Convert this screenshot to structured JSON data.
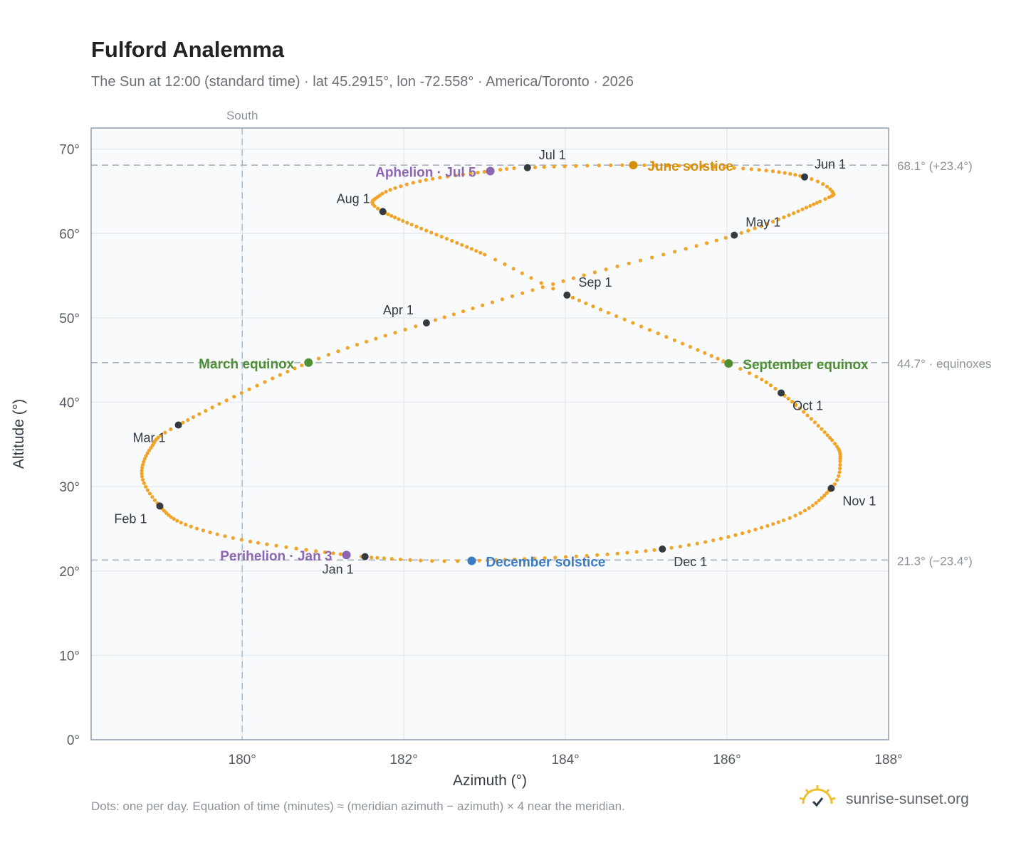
{
  "page": {
    "title": "Fulford Analemma",
    "subtitle": "The Sun at 12:00 (standard time) · lat 45.2915°, lon -72.558° · America/Toronto · 2026",
    "footnote": "Dots: one per day. Equation of time (minutes) ≈ (meridian azimuth − azimuth) × 4 near the meridian.",
    "brand": "sunrise-sunset.org",
    "brand_icon": "sun-check-icon"
  },
  "chart_data": {
    "type": "scatter",
    "xlabel": "Azimuth (°)",
    "ylabel": "Altitude (°)",
    "xlim": [
      178.13,
      188.0
    ],
    "ylim": [
      0,
      72.5
    ],
    "xticks": [
      180,
      182,
      184,
      186,
      188
    ],
    "xtick_labels": [
      "180°",
      "182°",
      "184°",
      "186°",
      "188°"
    ],
    "yticks": [
      0,
      10,
      20,
      30,
      40,
      50,
      60,
      70
    ],
    "ytick_labels": [
      "0°",
      "10°",
      "20°",
      "30°",
      "40°",
      "50°",
      "60°",
      "70°"
    ],
    "grid": true,
    "colors": {
      "path": "#f2a427",
      "month": "#343a40",
      "solstice_june": "#d4900c",
      "solstice_december": "#3a7cc4",
      "equinox": "#4e8e35",
      "apsis": "#8d66b3",
      "reference": "#aab2bd",
      "meridian": "#a9c1d6",
      "plot_bg": "#f8fafc",
      "frame": "#97a3b3"
    },
    "meridian": {
      "azimuth": 180,
      "label": "South"
    },
    "reference_lines": [
      {
        "altitude": 68.1,
        "label": "68.1° (+23.4°)"
      },
      {
        "altitude": 44.7,
        "label": "44.7° · equinoxes"
      },
      {
        "altitude": 21.3,
        "label": "21.3° (−23.4°)"
      }
    ],
    "month_markers": [
      {
        "label": "Jan 1",
        "azimuth": 181.52,
        "altitude": 21.7
      },
      {
        "label": "Feb 1",
        "azimuth": 178.98,
        "altitude": 27.7
      },
      {
        "label": "Mar 1",
        "azimuth": 179.21,
        "altitude": 37.3
      },
      {
        "label": "Apr 1",
        "azimuth": 182.28,
        "altitude": 49.4
      },
      {
        "label": "May 1",
        "azimuth": 186.09,
        "altitude": 59.8
      },
      {
        "label": "Jun 1",
        "azimuth": 186.96,
        "altitude": 66.7
      },
      {
        "label": "Jul 1",
        "azimuth": 183.53,
        "altitude": 67.8
      },
      {
        "label": "Aug 1",
        "azimuth": 181.74,
        "altitude": 62.6
      },
      {
        "label": "Sep 1",
        "azimuth": 184.02,
        "altitude": 52.7
      },
      {
        "label": "Oct 1",
        "azimuth": 186.67,
        "altitude": 41.1
      },
      {
        "label": "Nov 1",
        "azimuth": 187.29,
        "altitude": 29.8
      },
      {
        "label": "Dec 1",
        "azimuth": 185.2,
        "altitude": 22.6
      }
    ],
    "special_markers": [
      {
        "label": "March equinox",
        "kind": "equinox",
        "azimuth": 180.82,
        "altitude": 44.7
      },
      {
        "label": "June solstice",
        "kind": "solstice_june",
        "azimuth": 184.84,
        "altitude": 68.1
      },
      {
        "label": "September equinox",
        "kind": "equinox",
        "azimuth": 186.02,
        "altitude": 44.6
      },
      {
        "label": "December solstice",
        "kind": "solstice_december",
        "azimuth": 182.84,
        "altitude": 21.2
      },
      {
        "label": "Perihelion · Jan 3",
        "kind": "apsis",
        "azimuth": 181.29,
        "altitude": 21.9
      },
      {
        "label": "Aphelion · Jul 5",
        "kind": "apsis",
        "azimuth": 183.07,
        "altitude": 67.4
      }
    ],
    "path_anchors": [
      {
        "day": 0,
        "azimuth": 181.52,
        "altitude": 21.7
      },
      {
        "day": 2,
        "azimuth": 181.29,
        "altitude": 21.9
      },
      {
        "day": 13,
        "azimuth": 180.1,
        "altitude": 23.5
      },
      {
        "day": 22,
        "azimuth": 179.3,
        "altitude": 25.5
      },
      {
        "day": 31,
        "azimuth": 178.98,
        "altitude": 27.7
      },
      {
        "day": 40,
        "azimuth": 178.76,
        "altitude": 31.2
      },
      {
        "day": 50,
        "azimuth": 178.87,
        "altitude": 34.6
      },
      {
        "day": 59,
        "azimuth": 179.21,
        "altitude": 37.3
      },
      {
        "day": 78,
        "azimuth": 180.82,
        "altitude": 44.7
      },
      {
        "day": 90,
        "azimuth": 182.28,
        "altitude": 49.4
      },
      {
        "day": 105,
        "azimuth": 184.1,
        "altitude": 54.7
      },
      {
        "day": 120,
        "azimuth": 186.09,
        "altitude": 59.8
      },
      {
        "day": 137,
        "azimuth": 187.15,
        "altitude": 63.8
      },
      {
        "day": 145,
        "azimuth": 187.3,
        "altitude": 65.0
      },
      {
        "day": 151,
        "azimuth": 186.96,
        "altitude": 66.7
      },
      {
        "day": 161,
        "azimuth": 186.2,
        "altitude": 67.7
      },
      {
        "day": 171,
        "azimuth": 184.84,
        "altitude": 68.1
      },
      {
        "day": 181,
        "azimuth": 183.53,
        "altitude": 67.8
      },
      {
        "day": 185,
        "azimuth": 183.07,
        "altitude": 67.4
      },
      {
        "day": 195,
        "azimuth": 182.2,
        "altitude": 66.2
      },
      {
        "day": 203,
        "azimuth": 181.7,
        "altitude": 64.5
      },
      {
        "day": 212,
        "azimuth": 181.74,
        "altitude": 62.6
      },
      {
        "day": 235,
        "azimuth": 183.0,
        "altitude": 57.5
      },
      {
        "day": 243,
        "azimuth": 184.02,
        "altitude": 52.7
      },
      {
        "day": 265,
        "azimuth": 186.02,
        "altitude": 44.6
      },
      {
        "day": 273,
        "azimuth": 186.67,
        "altitude": 41.1
      },
      {
        "day": 288,
        "azimuth": 187.3,
        "altitude": 35.5
      },
      {
        "day": 297,
        "azimuth": 187.4,
        "altitude": 33.0
      },
      {
        "day": 304,
        "azimuth": 187.29,
        "altitude": 29.8
      },
      {
        "day": 317,
        "azimuth": 186.7,
        "altitude": 26.0
      },
      {
        "day": 334,
        "azimuth": 185.2,
        "altitude": 22.6
      },
      {
        "day": 354,
        "azimuth": 182.84,
        "altitude": 21.2
      },
      {
        "day": 364,
        "azimuth": 181.6,
        "altitude": 21.6
      }
    ]
  }
}
